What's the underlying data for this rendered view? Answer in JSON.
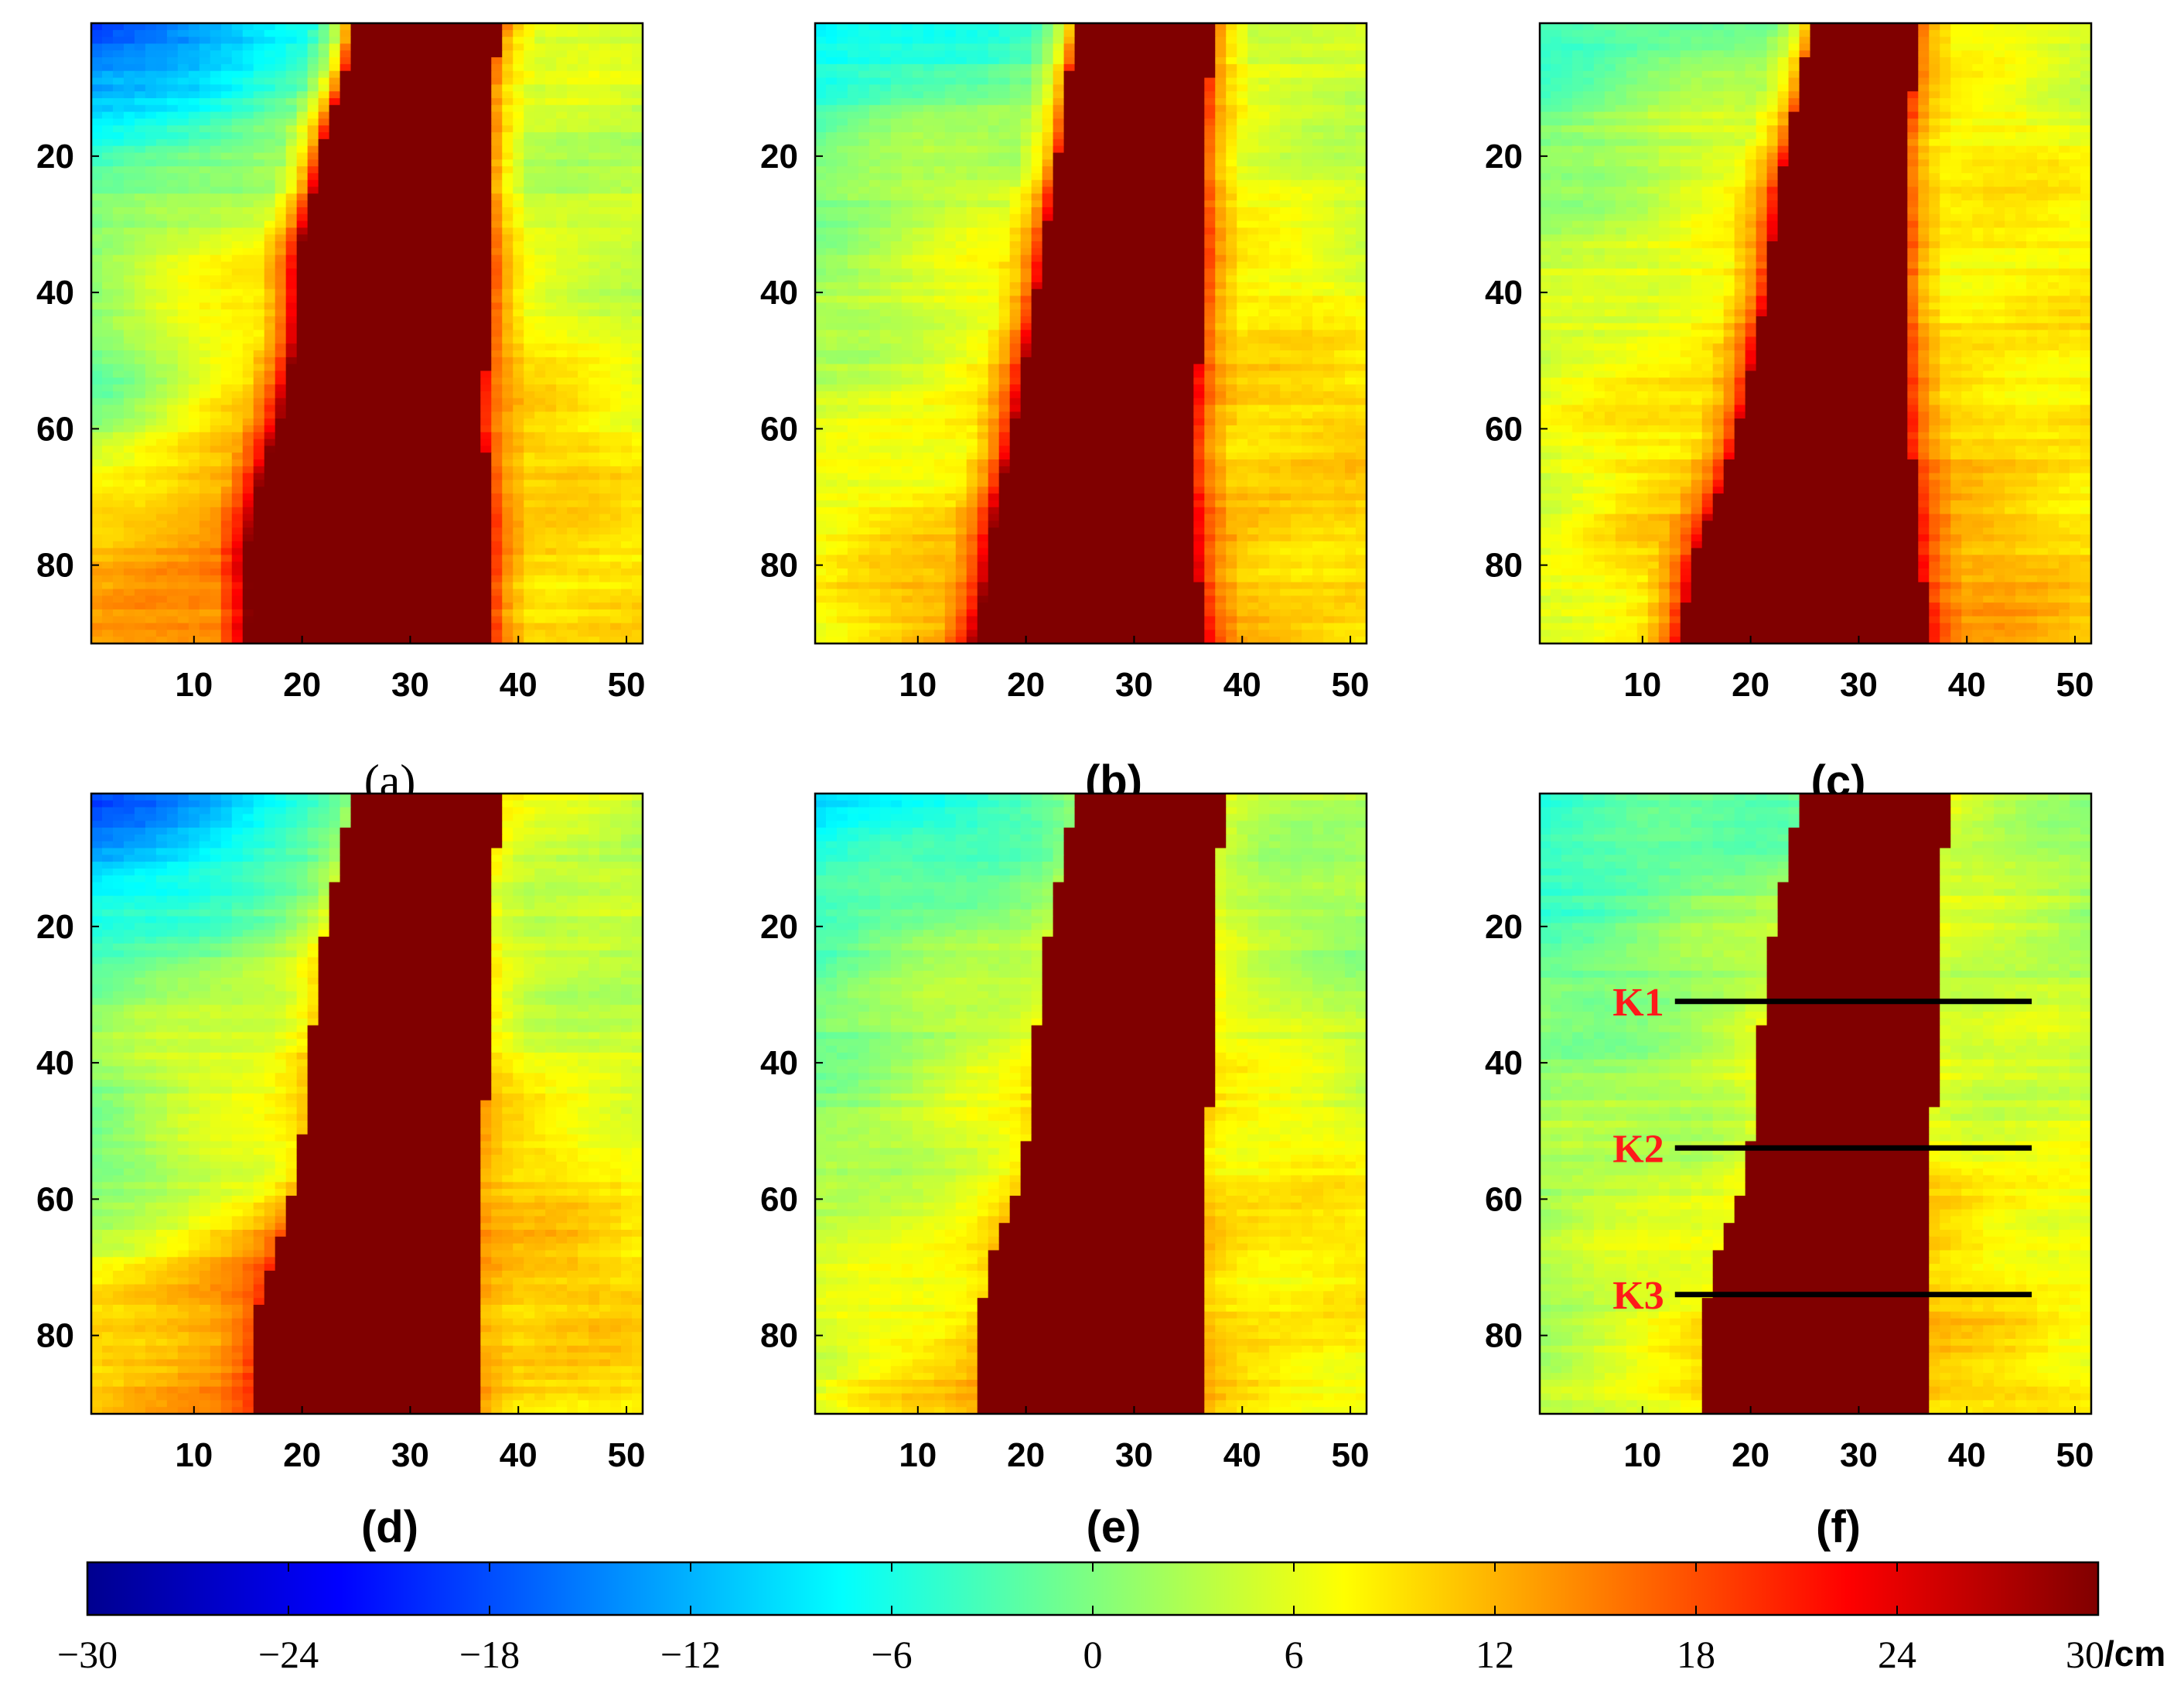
{
  "chart_data": {
    "type": "heatmap",
    "colormap": "jet",
    "colorbar": {
      "min": -30,
      "max": 30,
      "ticks": [
        -30,
        -24,
        -18,
        -12,
        -6,
        0,
        6,
        12,
        18,
        24,
        30
      ],
      "tick_labels": [
        "−30",
        "−24",
        "−18",
        "−12",
        "−6",
        "0",
        "6",
        "12",
        "18",
        "24",
        "30"
      ],
      "unit": "/cm"
    },
    "x_range": [
      1,
      51
    ],
    "y_range": [
      1,
      91
    ],
    "x_ticks": [
      10,
      20,
      30,
      40,
      50
    ],
    "x_tick_labels": [
      "10",
      "20",
      "30",
      "40",
      "50"
    ],
    "y_ticks": [
      20,
      40,
      60,
      80
    ],
    "y_tick_labels": [
      "20",
      "40",
      "60",
      "80"
    ],
    "panels": [
      {
        "label": "(a)",
        "cavity_value": 30,
        "left_edge": [
          [
            1,
            24.5
          ],
          [
            8,
            24
          ],
          [
            18,
            22
          ],
          [
            33,
            20
          ],
          [
            48,
            19.5
          ],
          [
            58,
            18.5
          ],
          [
            68,
            16.5
          ],
          [
            78,
            15.5
          ],
          [
            91,
            15.5
          ]
        ],
        "right_edge": [
          [
            1,
            38.5
          ],
          [
            10,
            37.5
          ],
          [
            25,
            37.5
          ],
          [
            45,
            37.5
          ],
          [
            57,
            36.5
          ],
          [
            70,
            37.5
          ],
          [
            85,
            37.5
          ],
          [
            91,
            37.5
          ]
        ],
        "left_zones": [
          [
            1,
            -20,
            -4
          ],
          [
            18,
            -6,
            3
          ],
          [
            35,
            2,
            10
          ],
          [
            55,
            -1,
            11
          ],
          [
            72,
            11,
            16
          ],
          [
            91,
            12,
            17
          ]
        ],
        "right_zones": [
          [
            1,
            2,
            7
          ],
          [
            20,
            1,
            5
          ],
          [
            45,
            3,
            8
          ],
          [
            65,
            6,
            11
          ],
          [
            91,
            6,
            11
          ]
        ],
        "near_left": 22,
        "near_right": 12
      },
      {
        "label": "(b)",
        "cavity_value": 30,
        "left_edge": [
          [
            1,
            24.5
          ],
          [
            14,
            23.5
          ],
          [
            35,
            21.5
          ],
          [
            55,
            19.5
          ],
          [
            70,
            17.5
          ],
          [
            80,
            16.5
          ],
          [
            91,
            15.5
          ]
        ],
        "right_edge": [
          [
            1,
            37.5
          ],
          [
            15,
            36.5
          ],
          [
            40,
            36.5
          ],
          [
            60,
            35.5
          ],
          [
            75,
            35.5
          ],
          [
            91,
            36.5
          ]
        ],
        "left_zones": [
          [
            1,
            -10,
            -2
          ],
          [
            20,
            0,
            5
          ],
          [
            45,
            3,
            8
          ],
          [
            70,
            6,
            11
          ],
          [
            91,
            8,
            14
          ]
        ],
        "right_zones": [
          [
            1,
            2,
            6
          ],
          [
            30,
            3,
            7
          ],
          [
            55,
            7,
            11
          ],
          [
            75,
            8,
            12
          ],
          [
            91,
            8,
            12
          ]
        ],
        "near_left": 18,
        "near_right": 13
      },
      {
        "label": "(c)",
        "cavity_value": 30,
        "left_edge": [
          [
            1,
            25.5
          ],
          [
            10,
            24.5
          ],
          [
            25,
            22.5
          ],
          [
            40,
            21.5
          ],
          [
            55,
            19.5
          ],
          [
            68,
            17.5
          ],
          [
            80,
            14.5
          ],
          [
            91,
            13.5
          ]
        ],
        "right_edge": [
          [
            1,
            35.5
          ],
          [
            20,
            34.5
          ],
          [
            40,
            34.5
          ],
          [
            55,
            34.5
          ],
          [
            75,
            35.5
          ],
          [
            91,
            36.5
          ]
        ],
        "left_zones": [
          [
            1,
            -4,
            0
          ],
          [
            15,
            0,
            6
          ],
          [
            40,
            4,
            10
          ],
          [
            65,
            6,
            11
          ],
          [
            91,
            7,
            10
          ]
        ],
        "right_zones": [
          [
            1,
            3,
            7
          ],
          [
            25,
            5,
            9
          ],
          [
            50,
            7,
            10
          ],
          [
            75,
            8,
            12
          ],
          [
            91,
            9,
            13
          ]
        ],
        "near_left": 15,
        "near_right": 11
      },
      {
        "label": "(d)",
        "cavity_value": 30,
        "left_edge": [
          [
            1,
            24.5
          ],
          [
            10,
            23.5
          ],
          [
            25,
            21.5
          ],
          [
            45,
            20.5
          ],
          [
            57,
            19.5
          ],
          [
            68,
            17.5
          ],
          [
            78,
            15.5
          ],
          [
            91,
            15.5
          ]
        ],
        "right_edge": [
          [
            1,
            38.5
          ],
          [
            15,
            37.5
          ],
          [
            35,
            37.5
          ],
          [
            55,
            36.5
          ],
          [
            70,
            36.5
          ],
          [
            91,
            36.5
          ]
        ],
        "left_zones": [
          [
            1,
            -18,
            -4
          ],
          [
            20,
            -6,
            3
          ],
          [
            38,
            2,
            9
          ],
          [
            55,
            -1,
            6
          ],
          [
            72,
            8,
            15
          ],
          [
            91,
            11,
            17
          ]
        ],
        "right_zones": [
          [
            1,
            1,
            6
          ],
          [
            25,
            0,
            5
          ],
          [
            45,
            4,
            8
          ],
          [
            65,
            7,
            11
          ],
          [
            91,
            7,
            11
          ]
        ],
        "near_left": 4,
        "near_right": 3
      },
      {
        "label": "(e)",
        "cavity_value": 30,
        "left_edge": [
          [
            1,
            24.5
          ],
          [
            10,
            23.5
          ],
          [
            25,
            21.5
          ],
          [
            45,
            20.5
          ],
          [
            58,
            19.5
          ],
          [
            70,
            16.5
          ],
          [
            80,
            15.5
          ],
          [
            91,
            15.5
          ]
        ],
        "right_edge": [
          [
            1,
            38.5
          ],
          [
            15,
            37.5
          ],
          [
            35,
            37.5
          ],
          [
            58,
            36.5
          ],
          [
            75,
            36.5
          ],
          [
            91,
            36.5
          ]
        ],
        "left_zones": [
          [
            1,
            -10,
            -2
          ],
          [
            20,
            -2,
            3
          ],
          [
            45,
            1,
            6
          ],
          [
            70,
            4,
            9
          ],
          [
            91,
            6,
            11
          ]
        ],
        "right_zones": [
          [
            1,
            1,
            4
          ],
          [
            25,
            1,
            4
          ],
          [
            45,
            3,
            7
          ],
          [
            65,
            6,
            10
          ],
          [
            91,
            7,
            10
          ]
        ],
        "near_left": 2,
        "near_right": 2
      },
      {
        "label": "(f)",
        "cavity_value": 30,
        "left_edge": [
          [
            1,
            24.5
          ],
          [
            10,
            23.5
          ],
          [
            25,
            21.5
          ],
          [
            45,
            20.5
          ],
          [
            58,
            19.5
          ],
          [
            70,
            16.5
          ],
          [
            80,
            15.5
          ],
          [
            91,
            15.5
          ]
        ],
        "right_edge": [
          [
            1,
            38.5
          ],
          [
            15,
            37.5
          ],
          [
            35,
            37.5
          ],
          [
            58,
            36.5
          ],
          [
            75,
            36.5
          ],
          [
            91,
            36.5
          ]
        ],
        "left_zones": [
          [
            1,
            -5,
            -2
          ],
          [
            20,
            -2,
            2
          ],
          [
            45,
            1,
            5
          ],
          [
            70,
            3,
            7
          ],
          [
            91,
            4,
            8
          ]
        ],
        "right_zones": [
          [
            1,
            1,
            4
          ],
          [
            25,
            1,
            4
          ],
          [
            45,
            3,
            6
          ],
          [
            60,
            6,
            9
          ],
          [
            91,
            7,
            10
          ]
        ],
        "near_left": 1,
        "near_right": 1,
        "profiles": [
          {
            "name": "K1",
            "y": 31,
            "x_start": 13,
            "x_end": 46
          },
          {
            "name": "K2",
            "y": 52.5,
            "x_start": 13,
            "x_end": 46
          },
          {
            "name": "K3",
            "y": 74,
            "x_start": 13,
            "x_end": 46
          }
        ]
      }
    ]
  }
}
